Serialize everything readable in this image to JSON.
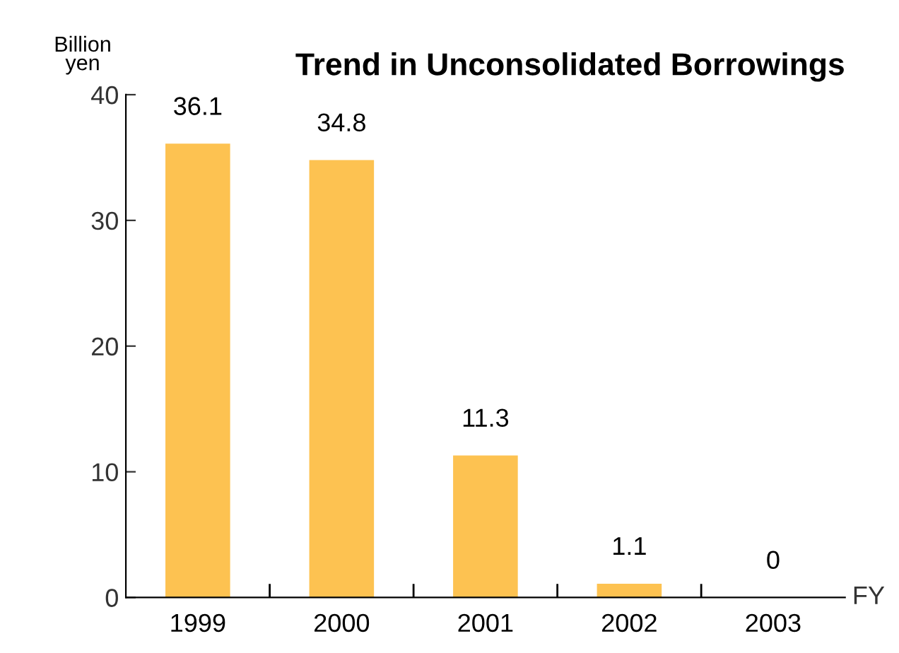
{
  "chart_data": {
    "type": "bar",
    "title": "Trend in Unconsolidated Borrowings",
    "ylabel": "Billion\nyen",
    "xlabel": "FY",
    "categories": [
      "1999",
      "2000",
      "2001",
      "2002",
      "2003"
    ],
    "values": [
      36.1,
      34.8,
      11.3,
      1.1,
      0
    ],
    "color": "#fdc251",
    "ylim": [
      0,
      40
    ],
    "yticks": [
      0,
      10,
      20,
      30,
      40
    ],
    "grid": false,
    "data_labels": true
  }
}
